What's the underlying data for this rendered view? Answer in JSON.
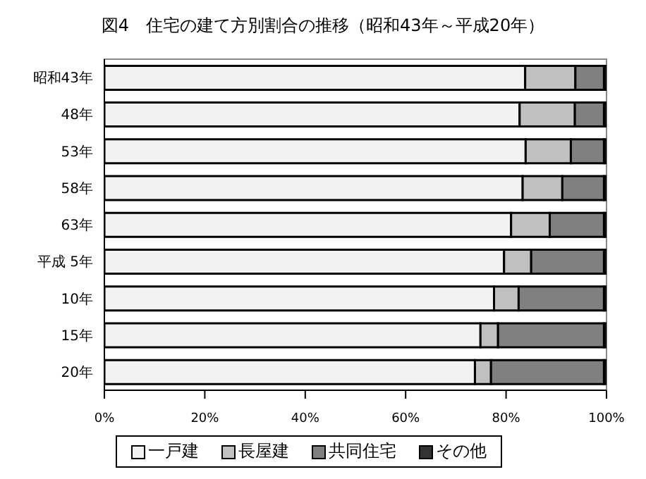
{
  "chart_data": {
    "type": "bar",
    "title": "図4　住宅の建て方別割合の推移（昭和43年～平成20年）",
    "orientation": "horizontal",
    "stacked": true,
    "categories": [
      "昭和43年",
      "48年",
      "53年",
      "58年",
      "63年",
      "平成 5年",
      "10年",
      "15年",
      "20年"
    ],
    "series": [
      {
        "name": "一戸建",
        "color": "#f2f2f2",
        "values": [
          83.8,
          82.7,
          83.9,
          83.3,
          81.0,
          79.6,
          77.6,
          74.9,
          73.8
        ]
      },
      {
        "name": "長屋建",
        "color": "#c0c0c0",
        "values": [
          10.0,
          11.0,
          9.0,
          7.9,
          7.7,
          5.4,
          4.9,
          3.5,
          3.2
        ]
      },
      {
        "name": "共同住宅",
        "color": "#808080",
        "values": [
          5.7,
          5.8,
          6.6,
          8.3,
          10.8,
          14.5,
          17.0,
          21.1,
          22.5
        ]
      },
      {
        "name": "その他",
        "color": "#333333",
        "values": [
          0.5,
          0.5,
          0.5,
          0.5,
          0.5,
          0.5,
          0.5,
          0.5,
          0.5
        ]
      }
    ],
    "xlim": [
      0,
      100
    ],
    "xticks": [
      {
        "value": 0,
        "label": "0%"
      },
      {
        "value": 20,
        "label": "20%"
      },
      {
        "value": 40,
        "label": "40%"
      },
      {
        "value": 60,
        "label": "60%"
      },
      {
        "value": 80,
        "label": "80%"
      },
      {
        "value": 100,
        "label": "100%"
      }
    ],
    "grid": false,
    "legend": "bottom"
  }
}
